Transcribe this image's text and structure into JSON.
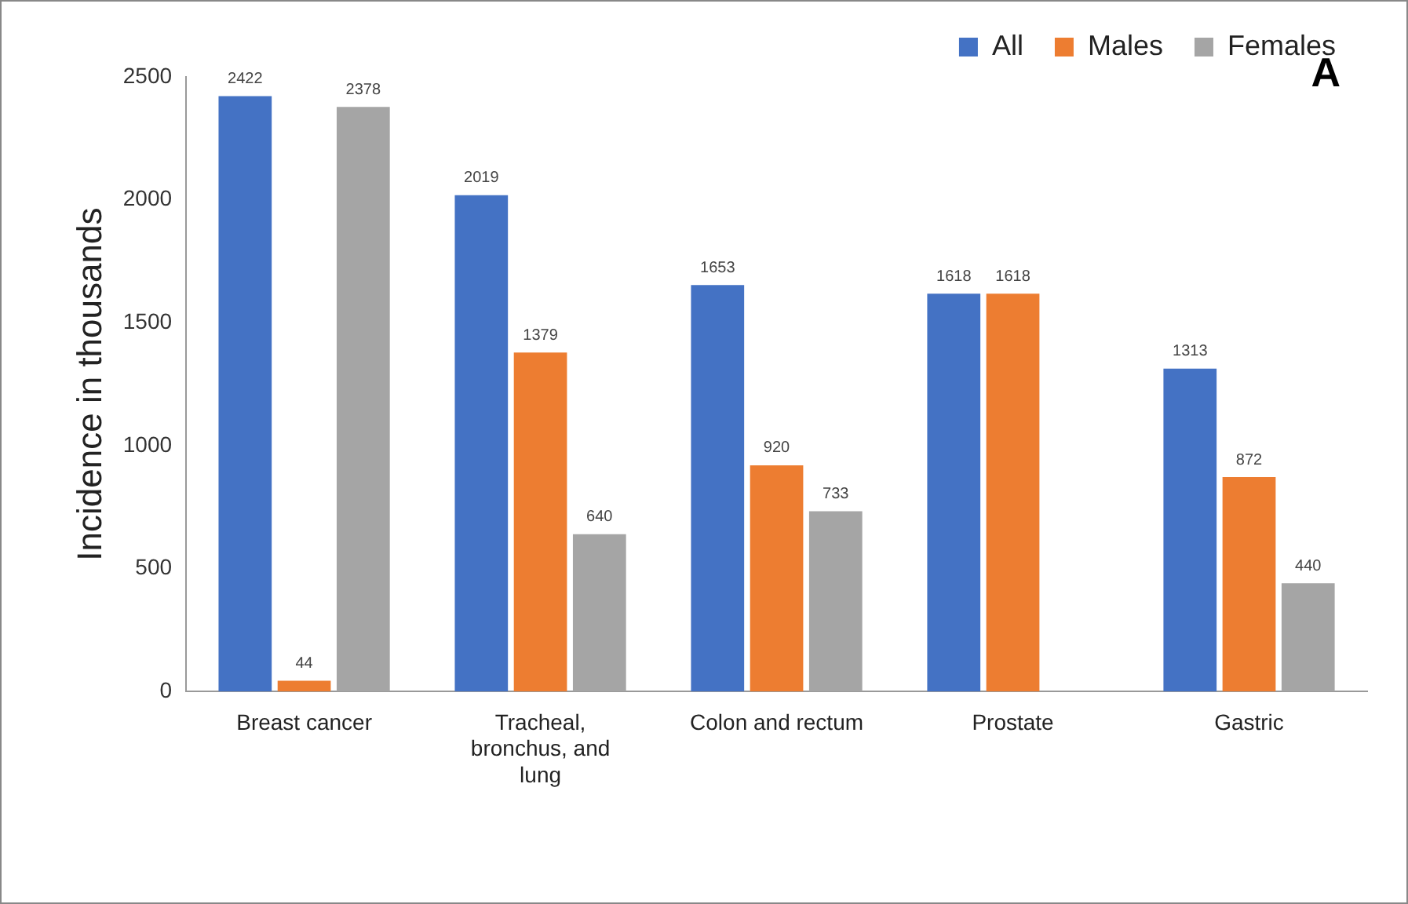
{
  "chart_data": {
    "type": "bar",
    "ylabel": "Incidence in thousands",
    "categories": [
      "Breast cancer",
      "Tracheal, bronchus, and lung",
      "Colon and rectum",
      "Prostate",
      "Gastric"
    ],
    "series": [
      {
        "name": "All",
        "color": "#4472c4",
        "values": [
          2422,
          2019,
          1653,
          1618,
          1313
        ]
      },
      {
        "name": "Males",
        "color": "#ed7d31",
        "values": [
          44,
          1379,
          920,
          1618,
          872
        ]
      },
      {
        "name": "Females",
        "color": "#a5a5a5",
        "values": [
          2378,
          640,
          733,
          null,
          440
        ]
      }
    ],
    "ylim": [
      0,
      2500
    ],
    "yticks": [
      0,
      500,
      1000,
      1500,
      2000,
      2500
    ],
    "grid": false,
    "legend": "top",
    "data_labels": true,
    "annotations": [
      "A"
    ]
  }
}
